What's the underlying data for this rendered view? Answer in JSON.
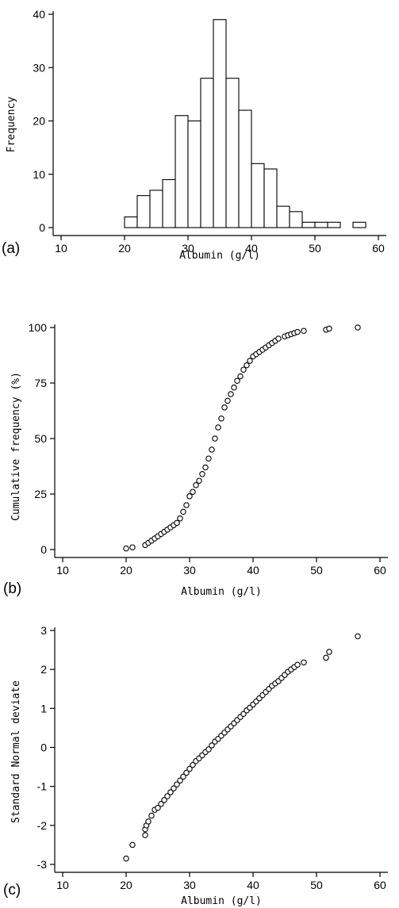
{
  "chart_data": [
    {
      "panel_label": "(a)",
      "type": "bar",
      "subtype": "histogram",
      "xlabel": "Albumin (g/l)",
      "ylabel": "Frequency",
      "xlim": [
        10,
        60
      ],
      "ylim": [
        0,
        40
      ],
      "xticks": [
        10,
        20,
        30,
        40,
        50,
        60
      ],
      "yticks": [
        0,
        10,
        20,
        30,
        40
      ],
      "bin_width": 2,
      "bin_starts": [
        20,
        22,
        24,
        26,
        28,
        30,
        32,
        34,
        36,
        38,
        40,
        42,
        44,
        46,
        48,
        50,
        52,
        56
      ],
      "values": [
        2,
        6,
        7,
        9,
        21,
        20,
        28,
        39,
        28,
        22,
        12,
        11,
        4,
        3,
        1,
        1,
        1,
        1
      ]
    },
    {
      "panel_label": "(b)",
      "type": "scatter",
      "xlabel": "Albumin (g/l)",
      "ylabel": "Cumulative frequency (%)",
      "xlim": [
        10,
        60
      ],
      "ylim": [
        0,
        100
      ],
      "xticks": [
        10,
        20,
        30,
        40,
        50,
        60
      ],
      "yticks": [
        0,
        25,
        50,
        75,
        100
      ],
      "x": [
        20,
        21,
        23,
        23.5,
        24,
        24.5,
        25,
        25.5,
        26,
        26.5,
        27,
        27.5,
        28,
        28.5,
        29,
        29.5,
        30,
        30.5,
        31,
        31.5,
        32,
        32.5,
        33,
        33.5,
        34,
        34.5,
        35,
        35.5,
        36,
        36.5,
        37,
        37.5,
        38,
        38.5,
        39,
        39.5,
        40,
        40.5,
        41,
        41.5,
        42,
        42.5,
        43,
        43.5,
        44,
        45,
        45.5,
        46,
        46.5,
        47,
        48,
        51.5,
        52,
        56.5
      ],
      "y": [
        0.5,
        1,
        2,
        3,
        4,
        5,
        6,
        7,
        8,
        9,
        10,
        11,
        12,
        14,
        17,
        20,
        24,
        26,
        29,
        31,
        34,
        37,
        41,
        45,
        50,
        55,
        59,
        64,
        67,
        70,
        73,
        76,
        78,
        81,
        83,
        85,
        87,
        88,
        89,
        90,
        91,
        92,
        93,
        94,
        95,
        96,
        96.5,
        97,
        97.5,
        98,
        98.5,
        99,
        99.5,
        100
      ]
    },
    {
      "panel_label": "(c)",
      "type": "scatter",
      "xlabel": "Albumin (g/l)",
      "ylabel": "Standard Normal deviate",
      "xlim": [
        10,
        60
      ],
      "ylim": [
        -3,
        3
      ],
      "xticks": [
        10,
        20,
        30,
        40,
        50,
        60
      ],
      "yticks": [
        -3,
        -2,
        -1,
        0,
        1,
        2,
        3
      ],
      "x": [
        20,
        21,
        23,
        23,
        23.2,
        23.5,
        24,
        24.5,
        25,
        25.5,
        26,
        26.5,
        27,
        27.5,
        28,
        28.5,
        29,
        29.5,
        30,
        30.5,
        31,
        31.5,
        32,
        32.5,
        33,
        33.5,
        34,
        34.5,
        35,
        35.5,
        36,
        36.5,
        37,
        37.5,
        38,
        38.5,
        39,
        39.5,
        40,
        40.5,
        41,
        41.5,
        42,
        42.5,
        43,
        43.5,
        44,
        44.5,
        45,
        45.5,
        46,
        46.5,
        47,
        48,
        51.5,
        52,
        56.5
      ],
      "y": [
        -2.85,
        -2.5,
        -2.25,
        -2.1,
        -2.0,
        -1.9,
        -1.75,
        -1.6,
        -1.55,
        -1.45,
        -1.35,
        -1.25,
        -1.15,
        -1.05,
        -0.95,
        -0.85,
        -0.75,
        -0.65,
        -0.55,
        -0.45,
        -0.35,
        -0.28,
        -0.2,
        -0.12,
        -0.05,
        0.05,
        0.15,
        0.22,
        0.3,
        0.38,
        0.46,
        0.54,
        0.62,
        0.7,
        0.78,
        0.86,
        0.95,
        1.02,
        1.1,
        1.18,
        1.26,
        1.34,
        1.42,
        1.5,
        1.58,
        1.64,
        1.7,
        1.78,
        1.86,
        1.94,
        2.0,
        2.06,
        2.12,
        2.18,
        2.3,
        2.45,
        2.85
      ]
    }
  ]
}
